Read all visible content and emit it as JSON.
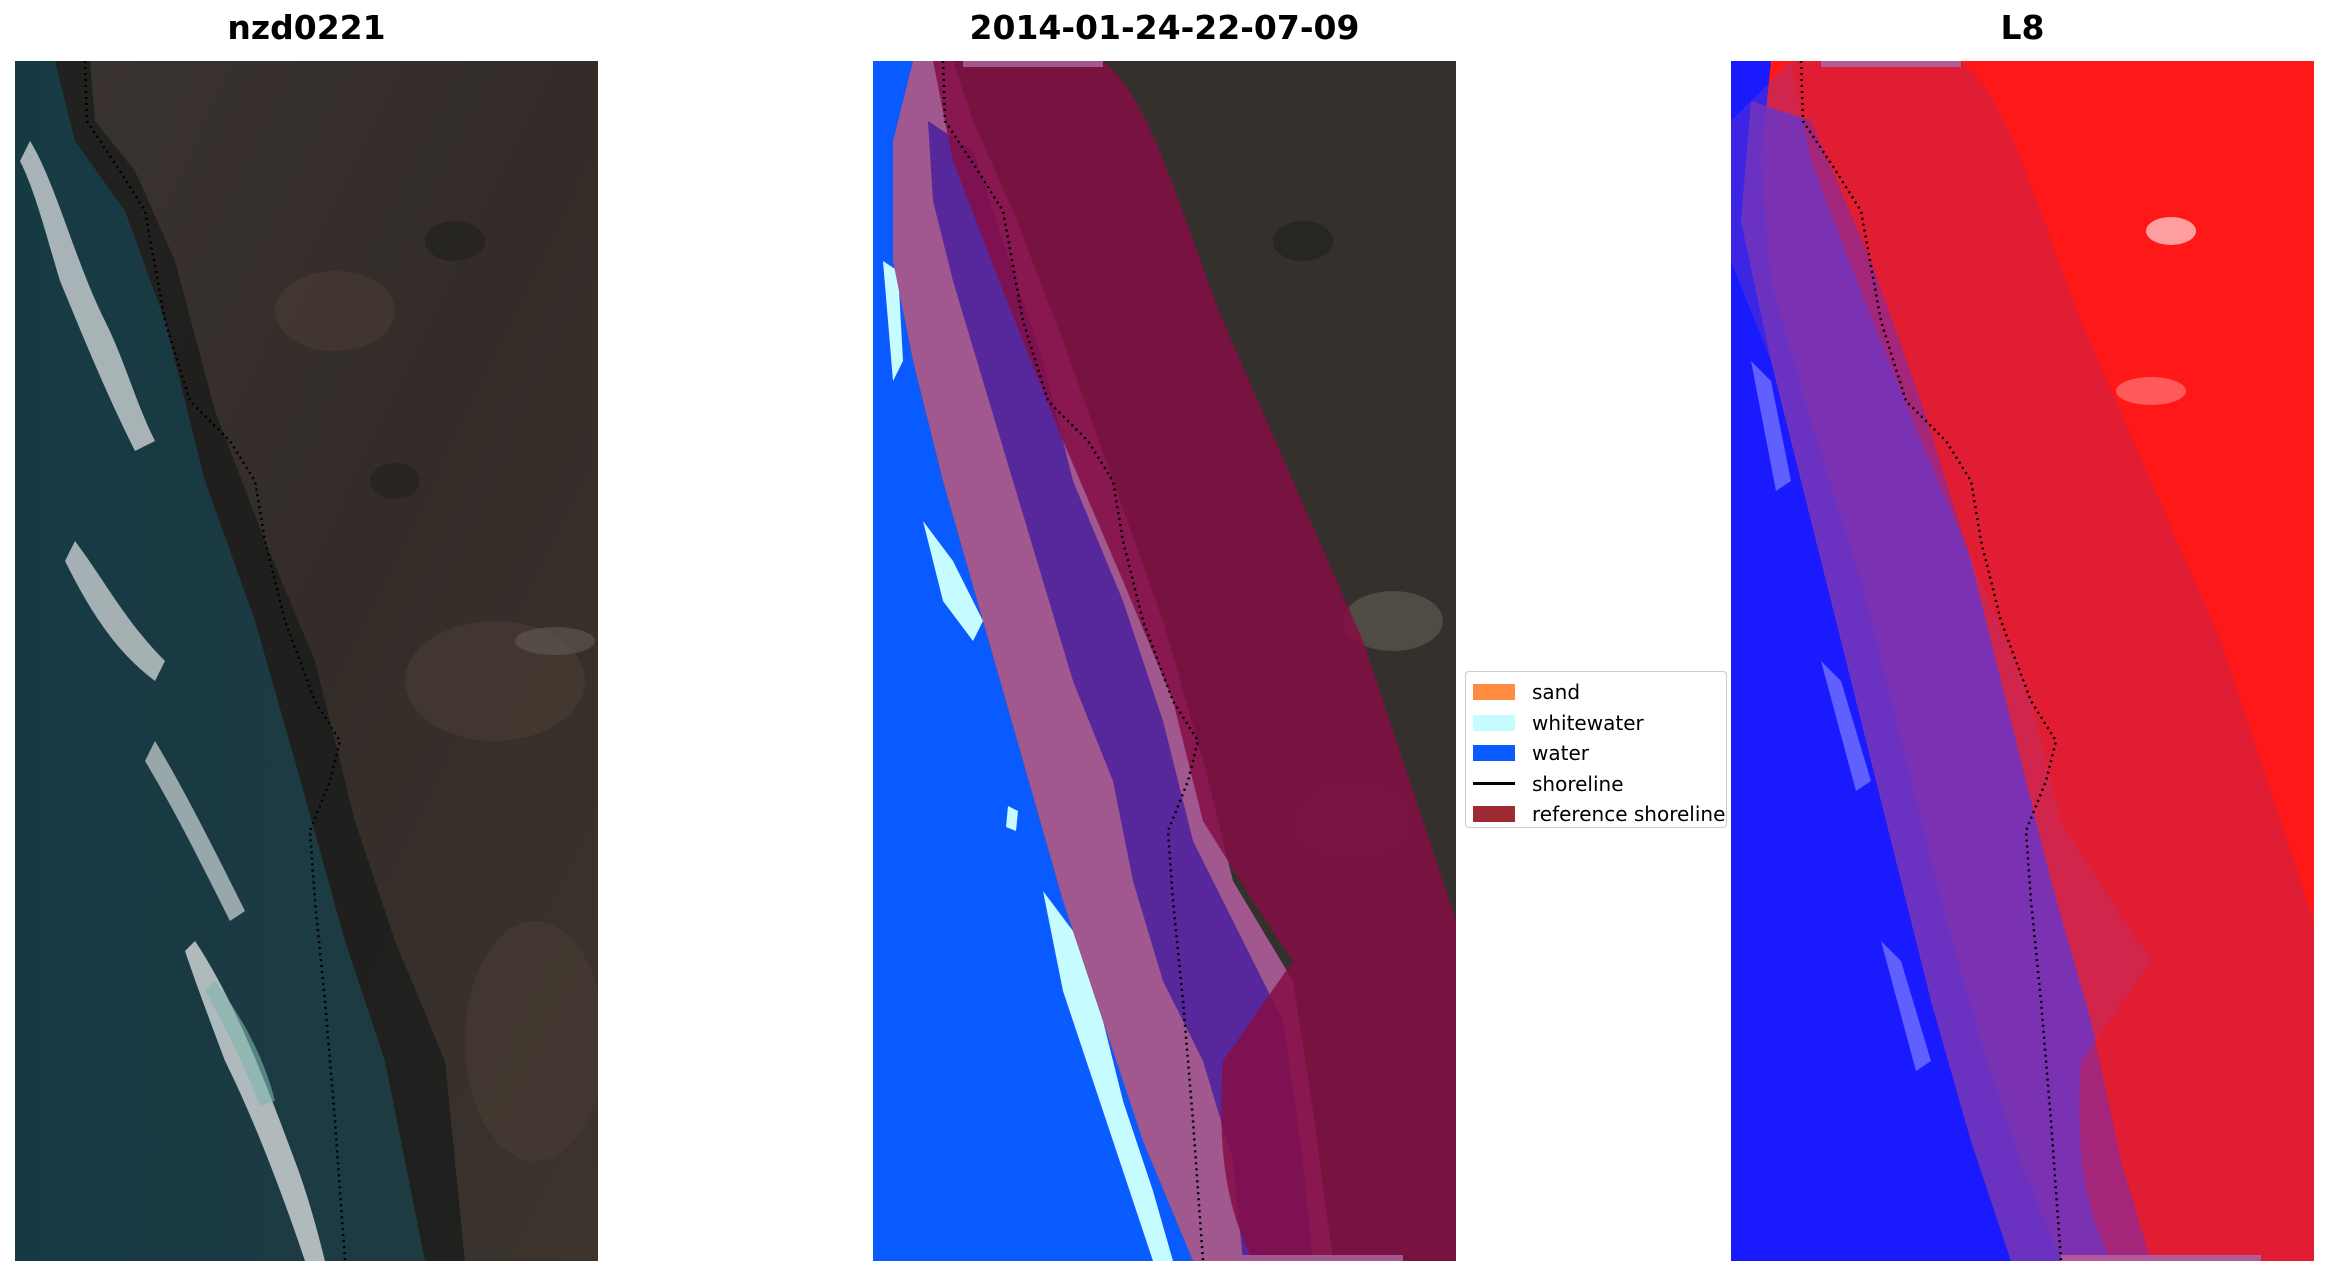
{
  "panels": [
    {
      "title": "nzd0221"
    },
    {
      "title": "2014-01-24-22-07-09"
    },
    {
      "title": "L8"
    }
  ],
  "legend": {
    "entries": [
      {
        "label": "sand",
        "color": "#ff8c42",
        "kind": "patch"
      },
      {
        "label": "whitewater",
        "color": "#c6fcff",
        "kind": "patch"
      },
      {
        "label": "water",
        "color": "#0a5bff",
        "kind": "patch"
      },
      {
        "label": "shoreline",
        "color": "#000000",
        "kind": "line"
      },
      {
        "label": "reference shoreline",
        "color": "#9e2b33",
        "kind": "patch"
      }
    ]
  },
  "colors": {
    "water": "#0a5bff",
    "whitewater": "#c6fcff",
    "sand_overlay": "#a0588f",
    "wet_zone": "#56289c",
    "reference_buffer": "#850d45",
    "index_positive": "#ff1818",
    "index_negative": "#1a1aff"
  }
}
